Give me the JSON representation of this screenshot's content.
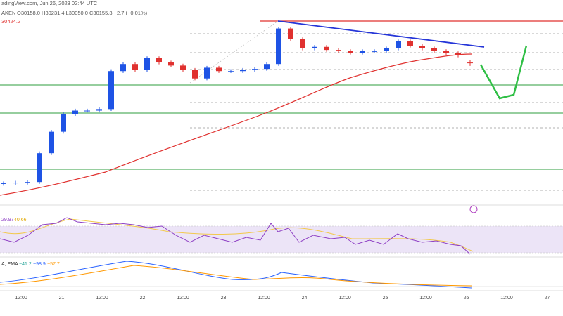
{
  "header": {
    "source": "adingView.com, Jun 26, 2023 02:44 UTC",
    "symbol": "AKEN",
    "ohlc": "O30158.0 H30231.4 L30050.0 C30155.3 −2.7 (−0.01%)",
    "ma": "30424.2"
  },
  "chart_data": {
    "type": "candlestick",
    "ylim": [
      25600,
      32200
    ],
    "up_color": "#1e53e5",
    "down_color": "#e0312f",
    "open": [
      26200,
      26220,
      26240,
      26260,
      27200,
      27900,
      28480,
      28590,
      28590,
      28640,
      29880,
      30110,
      29920,
      30300,
      30160,
      30060,
      29920,
      29640,
      29990,
      29880,
      29880,
      29920,
      29950,
      30110,
      31270,
      30920,
      30620,
      30670,
      30570,
      30530,
      30480,
      30530,
      30530,
      30620,
      30850,
      30710,
      30620,
      30530,
      30460,
      30158
    ],
    "high": [
      26280,
      26300,
      26320,
      27260,
      27960,
      28540,
      28650,
      28650,
      28700,
      29940,
      30170,
      30170,
      30360,
      30360,
      30220,
      30120,
      29980,
      30050,
      30050,
      29940,
      29980,
      30010,
      30170,
      31330,
      31330,
      30980,
      30730,
      30730,
      30630,
      30590,
      30590,
      30590,
      30680,
      30910,
      30910,
      30770,
      30680,
      30590,
      30520,
      30231.4
    ],
    "low": [
      26140,
      26160,
      26180,
      26200,
      27140,
      27840,
      28420,
      28530,
      28530,
      28580,
      29820,
      29860,
      29860,
      30100,
      30000,
      29860,
      29580,
      29580,
      29820,
      29820,
      29820,
      29860,
      29890,
      30050,
      30860,
      30560,
      30560,
      30510,
      30470,
      30420,
      30420,
      30470,
      30470,
      30560,
      30650,
      30560,
      30470,
      30400,
      30330,
      30050
    ],
    "close": [
      26220,
      26240,
      26260,
      27200,
      27900,
      28480,
      28590,
      28590,
      28640,
      29880,
      30110,
      29920,
      30300,
      30160,
      30060,
      29920,
      29640,
      29990,
      29880,
      29880,
      29920,
      29950,
      30110,
      31270,
      30920,
      30620,
      30670,
      30570,
      30530,
      30480,
      30530,
      30530,
      30620,
      30850,
      30710,
      30620,
      30530,
      30460,
      30390,
      30155.3
    ]
  },
  "rsi": {
    "value": "29.97",
    "ma": "40.66"
  },
  "macd": {
    "label": "A, EMA",
    "hist": "−41.2",
    "macd": "−98.9",
    "signal": "−57.7"
  },
  "time_axis": [
    "12:00",
    "21",
    "12:00",
    "22",
    "12:00",
    "23",
    "12:00",
    "24",
    "12:00",
    "25",
    "12:00",
    "26",
    "12:00",
    "27"
  ]
}
